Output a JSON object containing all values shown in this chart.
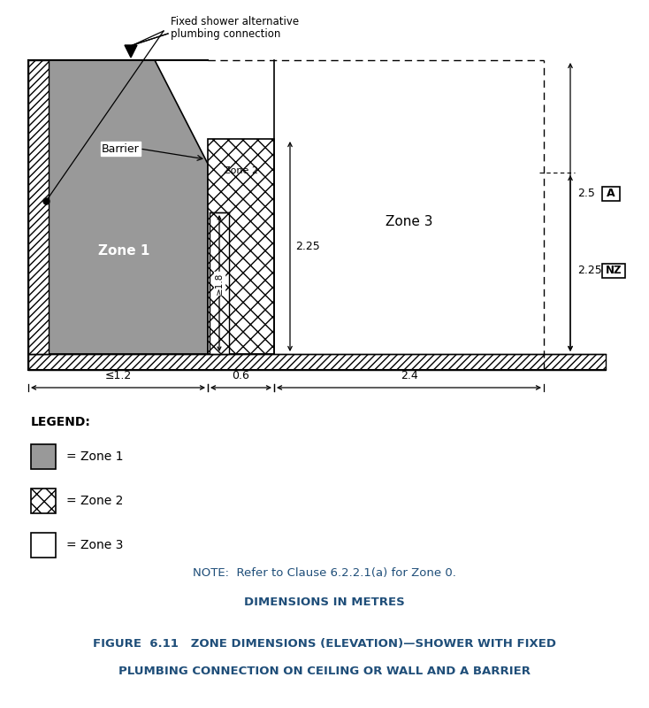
{
  "bg_color": "#ffffff",
  "zone1_color": "#999999",
  "blue_color": "#1f4e79",
  "black": "#000000",
  "fig_width": 7.34,
  "fig_height": 8.0,
  "labels": {
    "zone1": "Zone 1",
    "zone2": "Zone 2",
    "zone3": "Zone 3",
    "barrier": "Barrier",
    "annotation_line1": "Fixed shower alternative",
    "annotation_line2": "plumbing connection",
    "dim_225": "2.25",
    "dim_18": "≥1.8",
    "dim_12": "≤1.2",
    "dim_06": "0.6",
    "dim_24": "2.4",
    "dim_25": "2.5",
    "dim_225b": "2.25",
    "label_A": "A",
    "label_NZ": "NZ"
  },
  "note_text": "NOTE:  Refer to Clause 6.2.2.1(a) for Zone 0.",
  "dim_label": "DIMENSIONS IN METRES",
  "figure_title_line1": "FIGURE  6.11   ZONE DIMENSIONS (ELEVATION)—SHOWER WITH FIXED",
  "figure_title_line2": "PLUMBING CONNECTION ON CEILING OR WALL AND A BARRIER",
  "legend_title": "LEGEND:",
  "legend_items": [
    {
      "label": "= Zone 1",
      "facecolor": "#999999",
      "hatch": ""
    },
    {
      "label": "= Zone 2",
      "facecolor": "#ffffff",
      "hatch": "xx"
    },
    {
      "label": "= Zone 3",
      "facecolor": "#ffffff",
      "hatch": ""
    }
  ]
}
